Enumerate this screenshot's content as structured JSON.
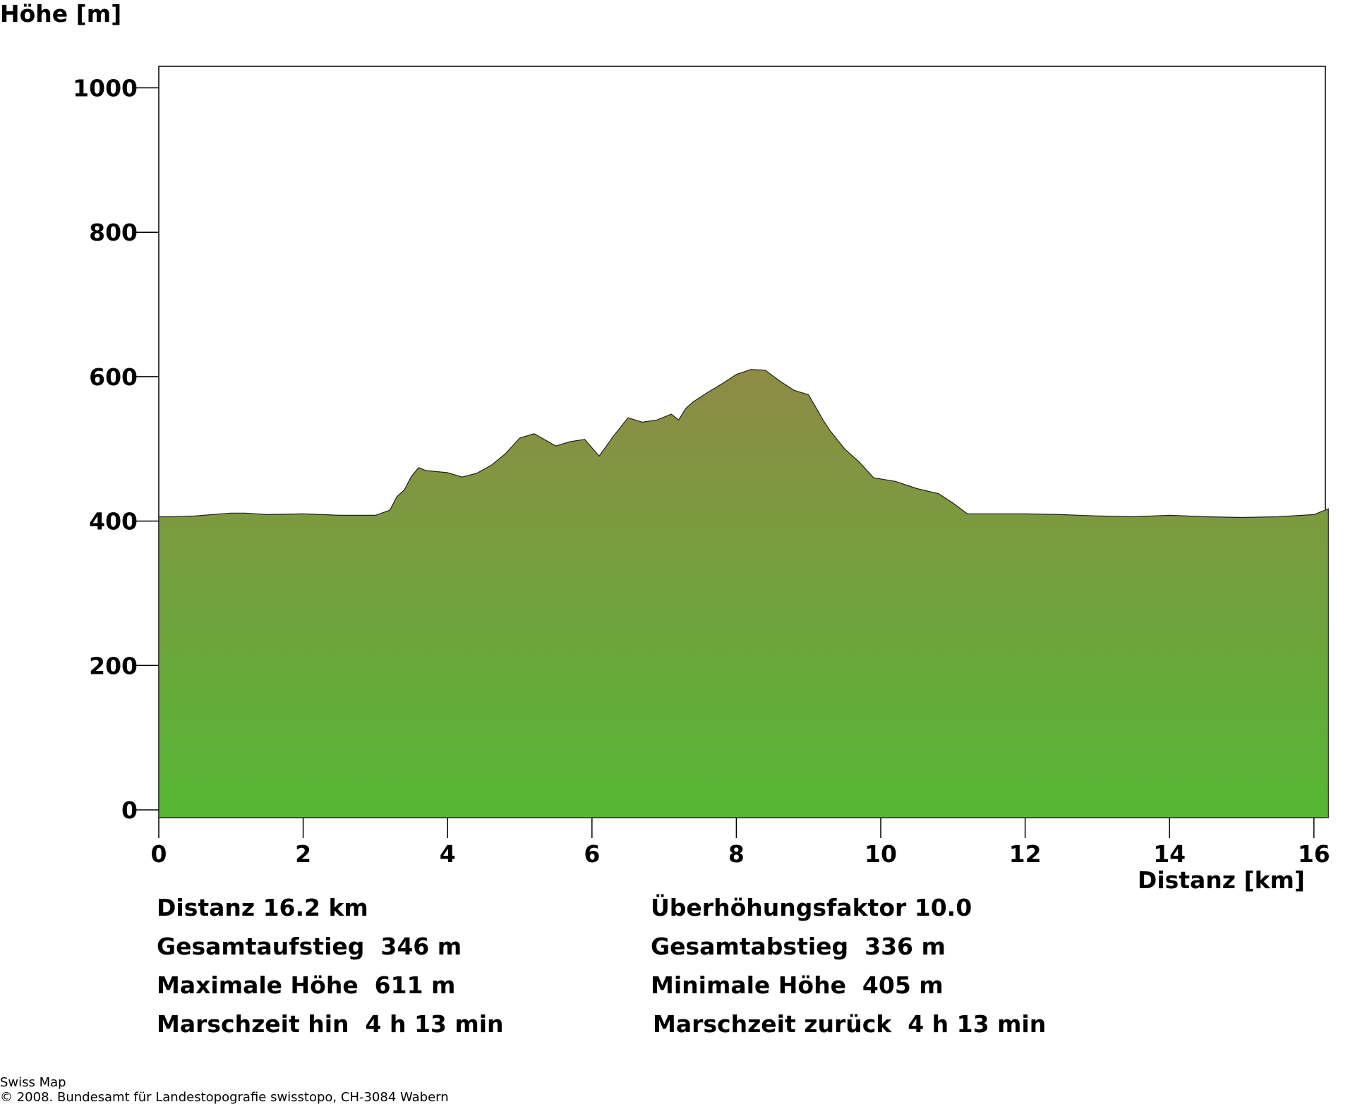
{
  "chart_data": {
    "type": "area",
    "ylabel": "Höhe [m]",
    "xlabel": "Distanz [km]",
    "xlim": [
      0,
      16.2
    ],
    "ylim": [
      -14,
      1030
    ],
    "xticks": [
      0,
      2,
      4,
      6,
      8,
      10,
      12,
      14,
      16
    ],
    "yticks": [
      0,
      200,
      400,
      600,
      800,
      1000
    ],
    "grid": false,
    "fill_gradient": {
      "top": "#8e8b45",
      "bottom": "#56b735"
    },
    "series": [
      {
        "x": [
          0,
          0.2,
          0.5,
          1.0,
          1.2,
          1.5,
          2.0,
          2.5,
          3.0,
          3.2,
          3.3,
          3.4,
          3.5,
          3.6,
          3.7,
          3.8,
          4.0,
          4.2,
          4.4,
          4.6,
          4.8,
          5.0,
          5.2,
          5.5,
          5.7,
          5.9,
          6.1,
          6.3,
          6.5,
          6.7,
          6.9,
          7.1,
          7.2,
          7.3,
          7.4,
          7.6,
          7.8,
          8.0,
          8.2,
          8.4,
          8.6,
          8.8,
          9.0,
          9.2,
          9.3,
          9.5,
          9.7,
          9.9,
          10.2,
          10.5,
          10.8,
          11.0,
          11.2,
          11.5,
          12.0,
          12.5,
          13.0,
          13.5,
          14.0,
          14.5,
          15.0,
          15.5,
          16.0,
          16.2
        ],
        "y": [
          406,
          406,
          407,
          411,
          411,
          409,
          410,
          408,
          408,
          415,
          434,
          443,
          462,
          474,
          470,
          469,
          467,
          461,
          466,
          477,
          493,
          515,
          521,
          504,
          510,
          513,
          490,
          518,
          543,
          537,
          540,
          548,
          540,
          556,
          565,
          578,
          590,
          603,
          610,
          609,
          594,
          581,
          575,
          540,
          525,
          500,
          482,
          460,
          455,
          445,
          438,
          425,
          410,
          410,
          410,
          409,
          407,
          406,
          408,
          406,
          405,
          406,
          409,
          417
        ]
      }
    ]
  },
  "stats": {
    "distance": "Distanz 16.2 km",
    "exaggeration": "Überhöhungsfaktor 10.0",
    "ascent": "Gesamtaufstieg  346 m",
    "descent": "Gesamtabstieg  336 m",
    "max_height": "Maximale Höhe  611 m",
    "min_height": "Minimale Höhe  405 m",
    "time_out": "Marschzeit hin  4 h 13 min",
    "time_back": "Marschzeit zurück  4 h 13 min"
  },
  "credits": {
    "line1": "Swiss Map",
    "line2": "© 2008. Bundesamt für Landestopografie swisstopo, CH-3084 Wabern"
  }
}
